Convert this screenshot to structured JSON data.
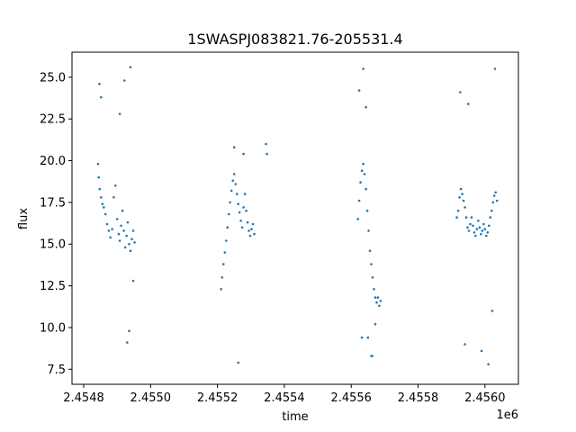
{
  "chart_data": {
    "type": "scatter",
    "title": "1SWASPJ083821.76-205531.4",
    "xlabel": "time",
    "ylabel": "flux",
    "x_offset_label": "1e6",
    "xlim": [
      2454765,
      2456100
    ],
    "ylim": [
      6.6,
      26.5
    ],
    "xticks": [
      2454800,
      2455000,
      2455200,
      2455400,
      2455600,
      2455800,
      2456000
    ],
    "xtick_labels": [
      "2.4548",
      "2.4550",
      "2.4552",
      "2.4554",
      "2.4556",
      "2.4558",
      "2.4560"
    ],
    "yticks": [
      7.5,
      10.0,
      12.5,
      15.0,
      17.5,
      20.0,
      22.5,
      25.0
    ],
    "ytick_labels": [
      "7.5",
      "10.0",
      "12.5",
      "15.0",
      "17.5",
      "20.0",
      "22.5",
      "25.0"
    ],
    "grid": false,
    "marker_color": "#1f77b4",
    "series": [
      {
        "x": [
          2454843,
          2454845,
          2454848,
          2454852,
          2454856,
          2454860,
          2454865,
          2454870,
          2454875,
          2454880,
          2454885,
          2454890,
          2454895,
          2454900,
          2454905,
          2454908,
          2454912,
          2454916,
          2454920,
          2454924,
          2454928,
          2454932,
          2454936,
          2454940,
          2454944,
          2454948,
          2454952
        ],
        "y": [
          19.8,
          19.0,
          18.3,
          17.8,
          17.4,
          17.2,
          16.8,
          16.2,
          15.8,
          15.4,
          15.9,
          17.8,
          18.5,
          16.5,
          15.6,
          15.2,
          16.1,
          17.0,
          15.8,
          14.8,
          15.5,
          16.3,
          15.0,
          14.6,
          15.3,
          15.8,
          15.1
        ]
      },
      {
        "x": [
          2455211,
          2455214,
          2455218,
          2455222,
          2455226,
          2455230,
          2455234,
          2455238,
          2455242,
          2455246,
          2455250,
          2455254,
          2455258,
          2455262,
          2455266,
          2455270,
          2455274,
          2455278,
          2455282,
          2455286,
          2455290,
          2455294,
          2455298,
          2455302,
          2455306,
          2455310
        ],
        "y": [
          12.3,
          13.0,
          13.8,
          14.5,
          15.2,
          16.0,
          16.8,
          17.5,
          18.2,
          18.8,
          19.2,
          18.6,
          18.0,
          17.4,
          16.9,
          16.4,
          16.0,
          17.2,
          18.0,
          17.0,
          16.3,
          15.8,
          15.5,
          15.9,
          16.2,
          15.6
        ]
      },
      {
        "x": [
          2455620,
          2455624,
          2455628,
          2455632,
          2455636,
          2455640,
          2455644,
          2455648,
          2455652,
          2455656,
          2455660,
          2455664,
          2455668,
          2455672,
          2455676,
          2455680,
          2455684,
          2455688
        ],
        "y": [
          16.5,
          17.6,
          18.7,
          19.4,
          19.8,
          19.2,
          18.3,
          17.0,
          15.8,
          14.6,
          13.8,
          13.0,
          12.3,
          11.8,
          11.5,
          11.8,
          11.3,
          11.6
        ]
      },
      {
        "x": [
          2455916,
          2455920,
          2455924,
          2455928,
          2455932,
          2455936,
          2455940,
          2455944,
          2455948,
          2455952,
          2455956,
          2455960,
          2455964,
          2455968,
          2455972,
          2455976,
          2455980,
          2455984,
          2455988,
          2455992,
          2455996,
          2456000,
          2456004,
          2456008,
          2456012,
          2456016,
          2456020,
          2456024,
          2456028,
          2456032,
          2456036
        ],
        "y": [
          16.6,
          17.0,
          17.8,
          18.3,
          18.0,
          17.6,
          17.2,
          16.6,
          16.0,
          15.8,
          16.2,
          16.6,
          16.1,
          15.7,
          15.5,
          15.9,
          16.4,
          16.0,
          15.6,
          15.8,
          16.2,
          15.9,
          15.5,
          15.7,
          16.1,
          16.6,
          17.0,
          17.5,
          17.9,
          18.1,
          17.6
        ]
      },
      {
        "x": [
          2454847,
          2454852,
          2454908,
          2454922,
          2454940,
          2454948,
          2454930,
          2454936,
          2455250,
          2455262,
          2455278,
          2455345,
          2455348,
          2455624,
          2455636,
          2455644,
          2455650,
          2455663,
          2455672,
          2455632,
          2455660,
          2455926,
          2455990,
          2456030,
          2455950,
          2456022,
          2456010,
          2455940
        ],
        "y": [
          24.6,
          23.8,
          22.8,
          24.8,
          25.6,
          12.8,
          9.1,
          9.8,
          20.8,
          7.9,
          20.4,
          21.0,
          20.4,
          24.2,
          25.5,
          23.2,
          9.4,
          8.3,
          10.2,
          9.4,
          8.3,
          24.1,
          8.6,
          25.5,
          23.4,
          11.0,
          7.8,
          9.0
        ]
      }
    ]
  }
}
